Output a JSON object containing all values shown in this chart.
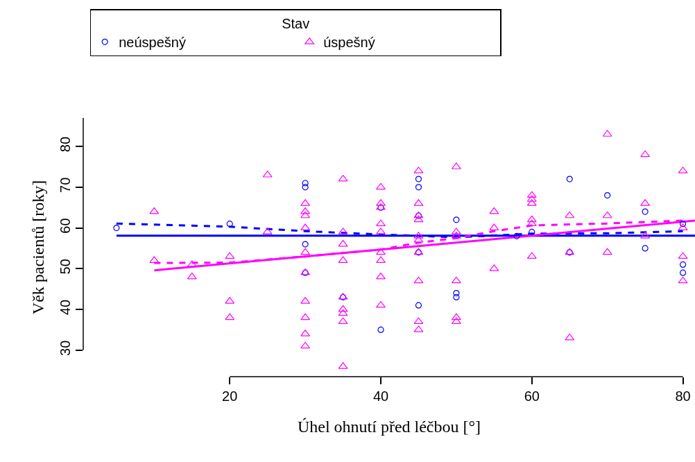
{
  "chart_data": {
    "type": "scatter",
    "xlabel": "Úhel ohnutí před léčbou [°]",
    "ylabel": "Věk pacientů [roky]",
    "legend_title": "Stav",
    "xlim": [
      0.6,
      81.6
    ],
    "ylim": [
      23.5,
      87
    ],
    "xticks": [
      20,
      40,
      60,
      80
    ],
    "yticks": [
      30,
      40,
      50,
      60,
      70,
      80
    ],
    "legend": "top left",
    "series": [
      {
        "name": "neúspešný",
        "color": "#0000ff",
        "marker": "circle",
        "x": [
          5,
          20,
          30,
          30,
          30,
          30,
          35,
          40,
          40,
          45,
          45,
          45,
          45,
          45,
          50,
          50,
          50,
          58,
          60,
          65,
          65,
          70,
          75,
          75,
          80,
          80,
          80
        ],
        "values": [
          60,
          61,
          71,
          70,
          56,
          49,
          43,
          65,
          35,
          72,
          70,
          63,
          54,
          41,
          62,
          44,
          43,
          58,
          59,
          72,
          54,
          68,
          64,
          55,
          61,
          51,
          49
        ]
      },
      {
        "name": "úspešný",
        "color": "#ff00ff",
        "marker": "triangle",
        "x": [
          10,
          10,
          15,
          15,
          20,
          20,
          20,
          25,
          25,
          30,
          30,
          30,
          30,
          30,
          30,
          30,
          30,
          30,
          30,
          35,
          35,
          35,
          35,
          35,
          35,
          35,
          35,
          35,
          40,
          40,
          40,
          40,
          40,
          40,
          40,
          40,
          40,
          45,
          45,
          45,
          45,
          45,
          45,
          45,
          45,
          45,
          45,
          50,
          50,
          50,
          50,
          50,
          50,
          55,
          55,
          55,
          60,
          60,
          60,
          60,
          60,
          60,
          65,
          65,
          65,
          70,
          70,
          70,
          75,
          75,
          75,
          80,
          80,
          80,
          80
        ],
        "values": [
          64,
          52,
          51,
          48,
          53,
          42,
          38,
          73,
          59,
          66,
          64,
          63,
          60,
          54,
          49,
          42,
          38,
          34,
          31,
          72,
          59,
          56,
          52,
          43,
          40,
          39,
          37,
          26,
          70,
          66,
          65,
          61,
          59,
          54,
          52,
          48,
          41,
          74,
          66,
          63,
          62,
          58,
          57,
          54,
          47,
          37,
          35,
          75,
          59,
          58,
          47,
          38,
          37,
          64,
          60,
          50,
          68,
          67,
          66,
          62,
          61,
          53,
          63,
          54,
          33,
          83,
          63,
          54,
          78,
          66,
          58,
          74,
          60,
          53,
          47
        ]
      },
      {
        "type": "line",
        "color": "#0000ff",
        "line_style": "solid",
        "x": [
          5,
          81.6
        ],
        "values": [
          58.1,
          58.1
        ]
      },
      {
        "type": "line",
        "color": "#0000ff",
        "line_style": "dashed",
        "x": [
          5,
          20,
          30,
          40,
          50,
          60,
          70,
          80
        ],
        "values": [
          61.1,
          60.3,
          59.2,
          58.4,
          57.7,
          58.6,
          58.7,
          59.2
        ]
      },
      {
        "type": "line",
        "color": "#ff00ff",
        "line_style": "solid",
        "x": [
          10,
          81.6
        ],
        "values": [
          49.6,
          61.8
        ]
      },
      {
        "type": "line",
        "color": "#ff00ff",
        "line_style": "dashed",
        "x": [
          10,
          20,
          30,
          40,
          45,
          50,
          55,
          60,
          70,
          80
        ],
        "values": [
          51.4,
          51.5,
          53,
          54.7,
          56.4,
          57.5,
          59.2,
          60.6,
          61.1,
          61.8
        ]
      }
    ]
  }
}
